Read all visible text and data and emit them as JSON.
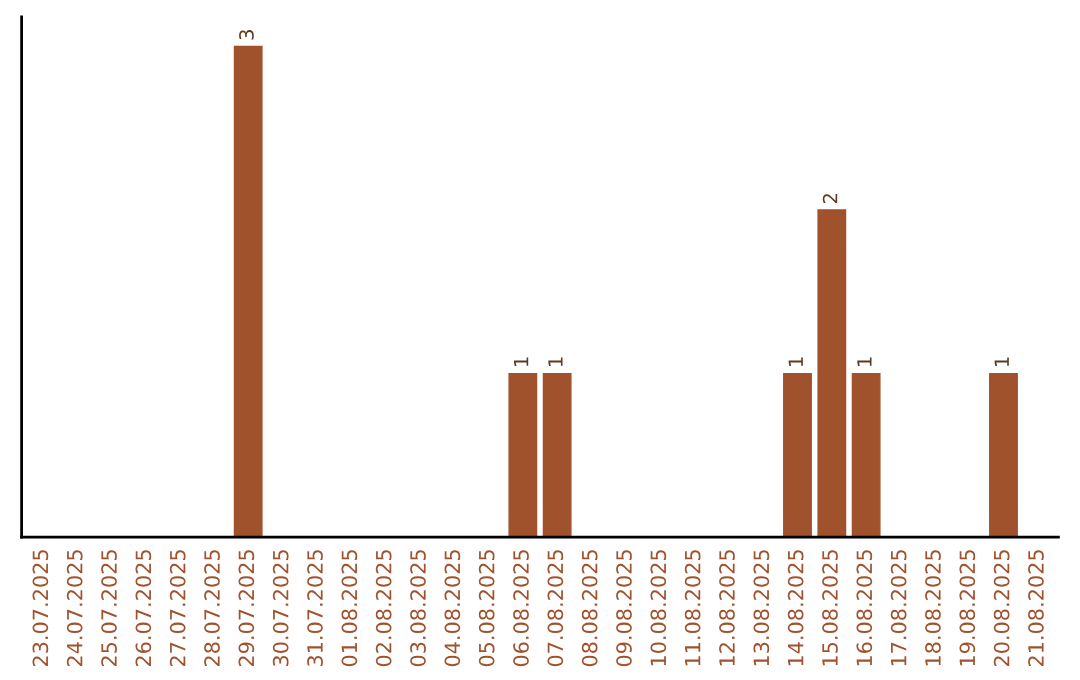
{
  "chart_data": {
    "type": "bar",
    "categories": [
      "23.07.2025",
      "24.07.2025",
      "25.07.2025",
      "26.07.2025",
      "27.07.2025",
      "28.07.2025",
      "29.07.2025",
      "30.07.2025",
      "31.07.2025",
      "01.08.2025",
      "02.08.2025",
      "03.08.2025",
      "04.08.2025",
      "05.08.2025",
      "06.08.2025",
      "07.08.2025",
      "08.08.2025",
      "09.08.2025",
      "10.08.2025",
      "11.08.2025",
      "12.08.2025",
      "13.08.2025",
      "14.08.2025",
      "15.08.2025",
      "16.08.2025",
      "17.08.2025",
      "18.08.2025",
      "19.08.2025",
      "20.08.2025",
      "21.08.2025"
    ],
    "values": [
      0,
      0,
      0,
      0,
      0,
      0,
      3,
      0,
      0,
      0,
      0,
      0,
      0,
      0,
      1,
      1,
      0,
      0,
      0,
      0,
      0,
      0,
      1,
      2,
      1,
      0,
      0,
      0,
      1,
      0
    ],
    "value_labels": [
      null,
      null,
      null,
      null,
      null,
      null,
      "3",
      null,
      null,
      null,
      null,
      null,
      null,
      null,
      "1",
      "1",
      null,
      null,
      null,
      null,
      null,
      null,
      "1",
      "2",
      "1",
      null,
      null,
      null,
      "1",
      null
    ],
    "color": "#a0522d",
    "grid": false,
    "legend": false
  }
}
